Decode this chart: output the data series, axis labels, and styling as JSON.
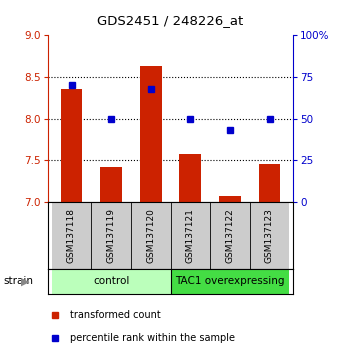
{
  "title": "GDS2451 / 248226_at",
  "samples": [
    "GSM137118",
    "GSM137119",
    "GSM137120",
    "GSM137121",
    "GSM137122",
    "GSM137123"
  ],
  "transformed_counts": [
    8.35,
    7.42,
    8.63,
    7.57,
    7.07,
    7.45
  ],
  "percentile_ranks": [
    70,
    50,
    68,
    50,
    43,
    50
  ],
  "ylim_left": [
    7,
    9
  ],
  "ylim_right": [
    0,
    100
  ],
  "yticks_left": [
    7,
    7.5,
    8,
    8.5,
    9
  ],
  "yticks_right": [
    0,
    25,
    50,
    75,
    100
  ],
  "bar_color": "#cc2200",
  "dot_color": "#0000cc",
  "groups": [
    {
      "label": "control",
      "indices": [
        0,
        1,
        2
      ],
      "color": "#bbffbb"
    },
    {
      "label": "TAC1 overexpressing",
      "indices": [
        3,
        4,
        5
      ],
      "color": "#44dd44"
    }
  ],
  "legend_items": [
    {
      "color": "#cc2200",
      "label": "transformed count"
    },
    {
      "color": "#0000cc",
      "label": "percentile rank within the sample"
    }
  ],
  "grid_color": "black",
  "grid_yticks": [
    7.5,
    8,
    8.5
  ]
}
